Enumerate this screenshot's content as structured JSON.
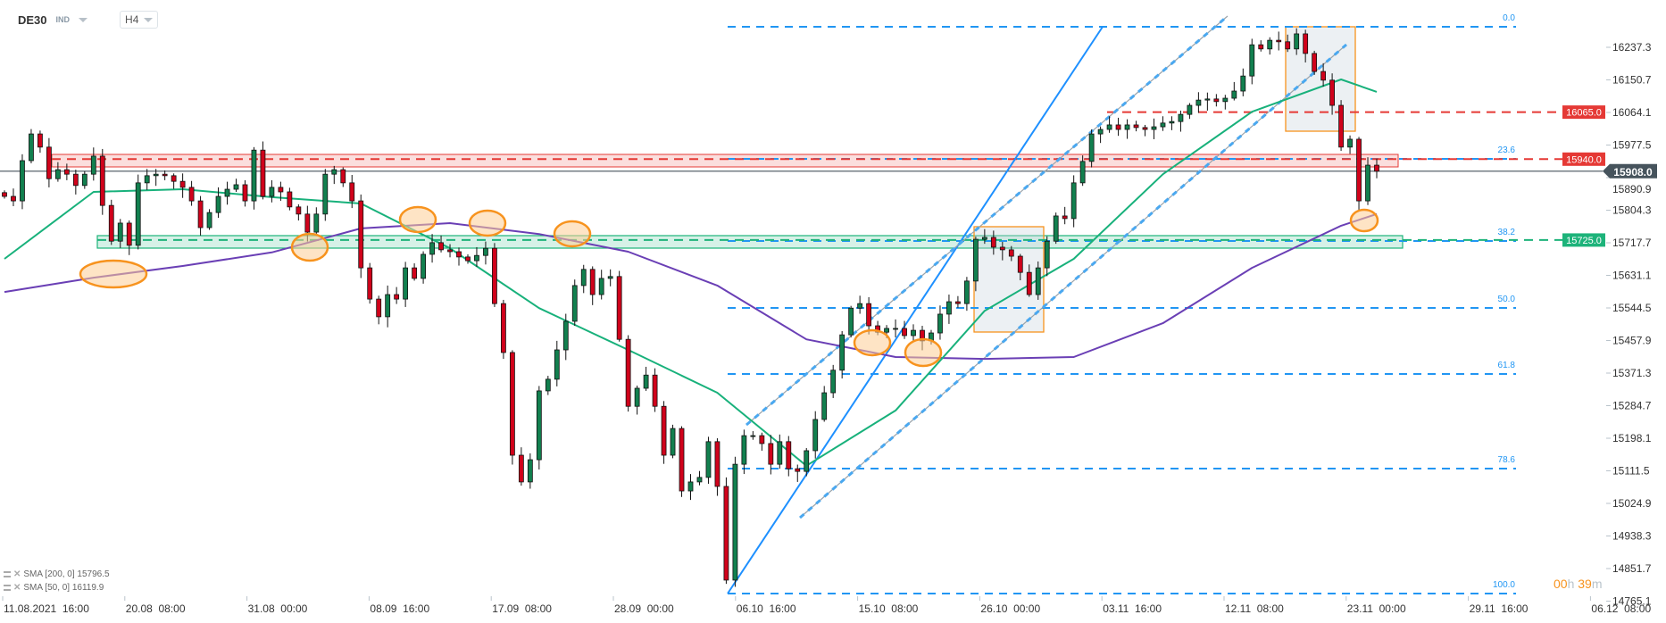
{
  "header": {
    "symbol": "DE30",
    "instrument_type": "IND",
    "timeframe": "H4"
  },
  "legend": [
    {
      "label": "SMA [200, 0] 15796.5"
    },
    {
      "label": "SMA [50, 0] 16119.9"
    }
  ],
  "countdown": {
    "hours": "00",
    "h": "h",
    "minutes": "39",
    "m": "m"
  },
  "colors": {
    "up": "#12804f",
    "down": "#d0021b",
    "sma50": "#18b17b",
    "sma200": "#6a3fb5",
    "fib": "#2196f3",
    "resistance": "#e53935",
    "support": "#1db37a",
    "highlight": "#f7931e",
    "price_line": "#46535c"
  },
  "chart_data": {
    "type": "candlestick",
    "symbol": "DE30",
    "timeframe": "H4",
    "closes": [
      15841,
      15829,
      15936,
      16007,
      15972,
      15888,
      15912,
      15900,
      15870,
      15900,
      15948,
      15817,
      15722,
      15770,
      15711,
      15877,
      15896,
      15900,
      15896,
      15881,
      15865,
      15829,
      15758,
      15798,
      15841,
      15860,
      15872,
      15829,
      15964,
      15841,
      15865,
      15853,
      15813,
      15794,
      15746,
      15794,
      15900,
      15912,
      15877,
      15829,
      15651,
      15568,
      15521,
      15580,
      15568,
      15651,
      15623,
      15687,
      15718,
      15699,
      15694,
      15680,
      15670,
      15684,
      15703,
      15556,
      15426,
      15153,
      15082,
      15141,
      15324,
      15355,
      15433,
      15509,
      15604,
      15647,
      15580,
      15623,
      15628,
      15461,
      15283,
      15331,
      15366,
      15283,
      15153,
      15224,
      15058,
      15082,
      15094,
      15189,
      15070,
      14821,
      15129,
      15205,
      15205,
      15184,
      15129,
      15189,
      15117,
      15110,
      15165,
      15248,
      15319,
      15379,
      15473,
      15544,
      15556,
      15497,
      15480,
      15490,
      15490,
      15471,
      15485,
      15457,
      15478,
      15528,
      15561,
      15556,
      15616,
      15727,
      15732,
      15706,
      15699,
      15682,
      15639,
      15580,
      15651,
      15722,
      15789,
      15782,
      15877,
      15934,
      16007,
      16019,
      16031,
      16019,
      16031,
      16024,
      16019,
      16026,
      16036,
      16040,
      16059,
      16083,
      16097,
      16100,
      16093,
      16102,
      16121,
      16161,
      16244,
      16233,
      16256,
      16252,
      16233,
      16273,
      16221,
      16173,
      16150,
      16083,
      15972,
      15993,
      15829,
      15924,
      15908
    ],
    "sma50": {
      "name": "SMA [50, 0]",
      "last": 16119.9,
      "values": [
        15675,
        15853,
        15860,
        15839,
        15822,
        15703,
        15544,
        15433,
        15319,
        15125,
        15272,
        15537,
        15675,
        15900,
        16066,
        16152,
        16119
      ]
    },
    "sma200": {
      "name": "SMA [200, 0]",
      "last": 15796.5,
      "values": [
        15587,
        15625,
        15656,
        15692,
        15756,
        15770,
        15741,
        15694,
        15604,
        15461,
        15414,
        15409,
        15414,
        15504,
        15651,
        15763,
        15794
      ]
    },
    "current_price": "15908.0",
    "levels": [
      {
        "price": 16065.0,
        "label": "16065.0",
        "kind": "resistance"
      },
      {
        "price": 15940.0,
        "label": "15940.0",
        "kind": "resistance"
      },
      {
        "price": 15725.0,
        "label": "15725.0",
        "kind": "support"
      }
    ],
    "fibonacci": [
      "0.0",
      "23.6",
      "38.2",
      "50.0",
      "61.8",
      "78.6",
      "100.0"
    ],
    "y_ticks": [
      "16237.3",
      "16150.7",
      "16064.1",
      "15977.5",
      "15890.9",
      "15804.3",
      "15717.7",
      "15631.1",
      "15544.5",
      "15457.9",
      "15371.3",
      "15284.7",
      "15198.1",
      "15111.5",
      "15024.9",
      "14938.3",
      "14851.7",
      "14765.1"
    ],
    "x_ticks": [
      "11.08.2021  16:00",
      "20.08  08:00",
      "31.08  00:00",
      "08.09  16:00",
      "17.09  08:00",
      "28.09  00:00",
      "06.10  16:00",
      "15.10  08:00",
      "26.10  00:00",
      "03.11  16:00",
      "12.11  08:00",
      "23.11  00:00",
      "29.11  16:00",
      "06.12  08:00"
    ],
    "grid": false
  }
}
